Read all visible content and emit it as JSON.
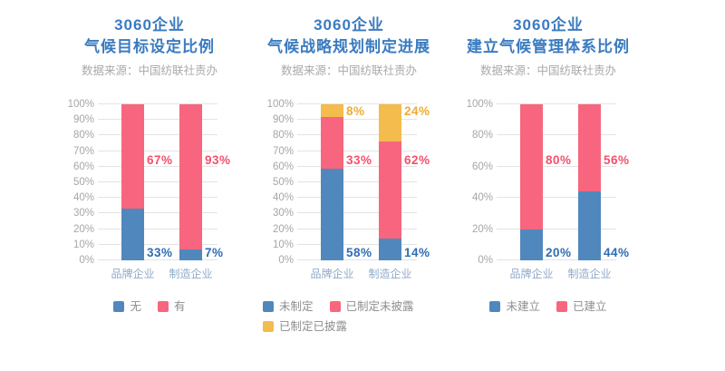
{
  "colors": {
    "bar": {
      "blue": "#5088BE",
      "pink": "#F7667E",
      "yellow": "#F4BB4D"
    },
    "label": {
      "blue": "#2E6DB4",
      "pink": "#F4516C",
      "yellow": "#EFAC33"
    },
    "title": "#3A7BC0",
    "subtitle": "#A9A9A9",
    "tick": "#A6A6A6",
    "category": "#8FA9C9",
    "legend_text": "#8E8E8E",
    "grid": "#E3E3E3",
    "background": "#FFFFFF"
  },
  "chart_data": [
    {
      "type": "bar",
      "stacked": true,
      "title": [
        "3060企业",
        "气候目标设定比例"
      ],
      "subtitle": "数据来源：中国纺联社责办",
      "categories": [
        "品牌企业",
        "制造企业"
      ],
      "series": [
        {
          "name": "无",
          "color_key": "blue",
          "values": [
            33,
            7
          ]
        },
        {
          "name": "有",
          "color_key": "pink",
          "values": [
            67,
            93
          ]
        }
      ],
      "ylim": [
        0,
        100
      ],
      "ytick_step": 10,
      "ytick_suffix": "%",
      "data_label_suffix": "%",
      "grid": true,
      "legend_position": "bottom"
    },
    {
      "type": "bar",
      "stacked": true,
      "title": [
        "3060企业",
        "气候战略规划制定进展"
      ],
      "subtitle": "数据来源：中国纺联社责办",
      "categories": [
        "品牌企业",
        "制造企业"
      ],
      "series": [
        {
          "name": "未制定",
          "color_key": "blue",
          "values": [
            58,
            14
          ]
        },
        {
          "name": "已制定未披露",
          "color_key": "pink",
          "values": [
            33,
            62
          ]
        },
        {
          "name": "已制定已披露",
          "color_key": "yellow",
          "values": [
            8,
            24
          ]
        }
      ],
      "ylim": [
        0,
        100
      ],
      "ytick_step": 10,
      "ytick_suffix": "%",
      "data_label_suffix": "%",
      "grid": true,
      "legend_position": "bottom"
    },
    {
      "type": "bar",
      "stacked": true,
      "title": [
        "3060企业",
        "建立气候管理体系比例"
      ],
      "subtitle": "数据来源：中国纺联社责办",
      "categories": [
        "品牌企业",
        "制造企业"
      ],
      "series": [
        {
          "name": "未建立",
          "color_key": "blue",
          "values": [
            20,
            44
          ]
        },
        {
          "name": "已建立",
          "color_key": "pink",
          "values": [
            80,
            56
          ]
        }
      ],
      "ylim": [
        0,
        100
      ],
      "ytick_step": 20,
      "ytick_suffix": "%",
      "data_label_suffix": "%",
      "grid": true,
      "legend_position": "bottom"
    }
  ]
}
